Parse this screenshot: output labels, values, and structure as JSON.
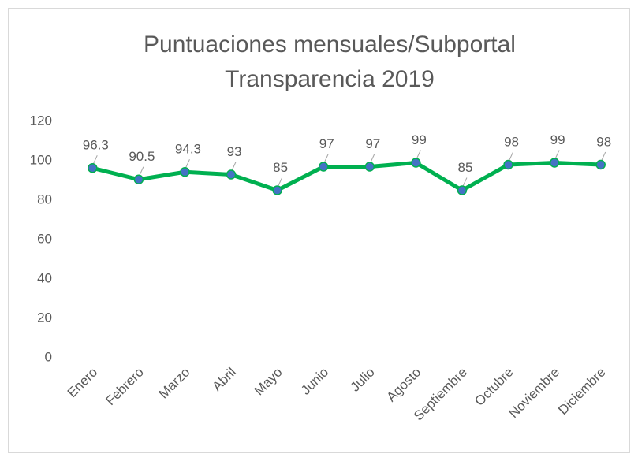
{
  "chart_data": {
    "type": "line",
    "title": [
      "Puntuaciones mensuales/Subportal",
      "Transparencia 2019"
    ],
    "categories": [
      "Enero",
      "Febrero",
      "Marzo",
      "Abril",
      "Mayo",
      "Junio",
      "Julio",
      "Agosto",
      "Septiembre",
      "Octubre",
      "Noviembre",
      "Diciembre"
    ],
    "values": [
      96.3,
      90.5,
      94.3,
      93,
      85,
      97,
      97,
      99,
      85,
      98,
      99,
      98
    ],
    "color": "#00b050",
    "marker_color": "#4472c4",
    "ylim": [
      0,
      120
    ],
    "yticks": [
      0,
      20,
      40,
      60,
      80,
      100,
      120
    ],
    "grid": false
  }
}
